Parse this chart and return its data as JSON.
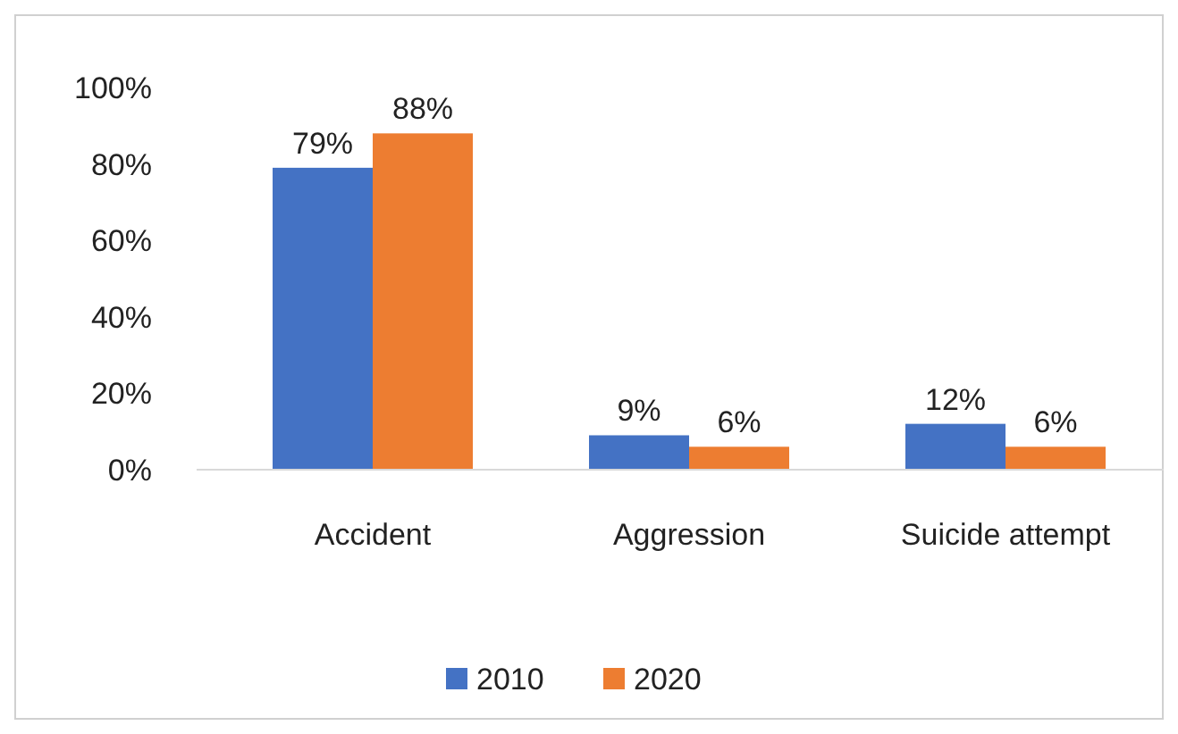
{
  "chart_data": {
    "type": "bar",
    "categories": [
      "Accident",
      "Aggression",
      "Suicide attempt"
    ],
    "series": [
      {
        "name": "2010",
        "color": "#4472c4",
        "values": [
          79,
          9,
          12
        ]
      },
      {
        "name": "2020",
        "color": "#ed7d31",
        "values": [
          88,
          6,
          6
        ]
      }
    ],
    "ylim": [
      0,
      100
    ],
    "yticks": [
      {
        "value": 0,
        "label": "0%"
      },
      {
        "value": 20,
        "label": "20%"
      },
      {
        "value": 40,
        "label": "40%"
      },
      {
        "value": 60,
        "label": "60%"
      },
      {
        "value": 80,
        "label": "80%"
      },
      {
        "value": 100,
        "label": "100%"
      }
    ],
    "value_labels": [
      [
        "79%",
        "9%",
        "12%"
      ],
      [
        "88%",
        "6%",
        "6%"
      ]
    ],
    "grid": false,
    "legend": "bottom"
  }
}
